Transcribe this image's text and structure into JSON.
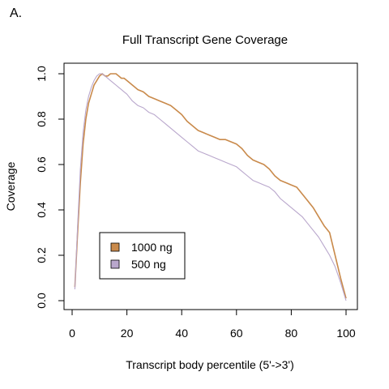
{
  "panel_label": "A.",
  "colors": {
    "series_1000ng": "#c98a4b",
    "series_500ng": "#b9a7cc",
    "axis": "#000000"
  },
  "chart_data": {
    "type": "line",
    "title": "Full Transcript Gene Coverage",
    "xlabel": "Transcript body percentile (5'->3')",
    "ylabel": "Coverage",
    "xlim": [
      0,
      100
    ],
    "ylim": [
      0,
      1
    ],
    "x_ticks": [
      0,
      20,
      40,
      60,
      80,
      100
    ],
    "y_ticks": [
      0.0,
      0.2,
      0.4,
      0.6,
      0.8,
      1.0
    ],
    "x_tick_labels": [
      "0",
      "20",
      "40",
      "60",
      "80",
      "100"
    ],
    "y_tick_labels": [
      "0.0",
      "0.2",
      "0.4",
      "0.6",
      "0.8",
      "1.0"
    ],
    "legend": {
      "placement": "bottom-left"
    },
    "x": [
      1,
      2,
      3,
      4,
      5,
      6,
      7,
      8,
      9,
      10,
      11,
      12,
      13,
      14,
      15,
      16,
      17,
      18,
      19,
      20,
      22,
      24,
      26,
      28,
      30,
      32,
      34,
      36,
      38,
      40,
      42,
      44,
      46,
      48,
      50,
      52,
      54,
      56,
      58,
      60,
      62,
      64,
      66,
      68,
      70,
      72,
      74,
      76,
      78,
      80,
      82,
      84,
      86,
      88,
      90,
      92,
      94,
      96,
      98,
      100
    ],
    "series": [
      {
        "name": "1000 ng",
        "values": [
          0.06,
          0.3,
          0.52,
          0.69,
          0.8,
          0.87,
          0.91,
          0.95,
          0.97,
          0.99,
          1.0,
          0.99,
          0.99,
          1.0,
          1.0,
          1.0,
          0.99,
          0.98,
          0.98,
          0.97,
          0.95,
          0.93,
          0.92,
          0.9,
          0.89,
          0.88,
          0.87,
          0.86,
          0.84,
          0.82,
          0.79,
          0.77,
          0.75,
          0.74,
          0.73,
          0.72,
          0.71,
          0.71,
          0.7,
          0.69,
          0.67,
          0.64,
          0.62,
          0.61,
          0.6,
          0.58,
          0.55,
          0.53,
          0.52,
          0.51,
          0.5,
          0.47,
          0.44,
          0.41,
          0.37,
          0.33,
          0.3,
          0.2,
          0.1,
          0.01
        ]
      },
      {
        "name": "500 ng",
        "values": [
          0.05,
          0.33,
          0.58,
          0.74,
          0.84,
          0.9,
          0.94,
          0.97,
          0.99,
          1.0,
          1.0,
          0.99,
          0.98,
          0.97,
          0.96,
          0.95,
          0.94,
          0.93,
          0.92,
          0.91,
          0.88,
          0.86,
          0.85,
          0.83,
          0.82,
          0.8,
          0.78,
          0.76,
          0.74,
          0.72,
          0.7,
          0.68,
          0.66,
          0.65,
          0.64,
          0.63,
          0.62,
          0.61,
          0.6,
          0.59,
          0.57,
          0.55,
          0.53,
          0.52,
          0.51,
          0.5,
          0.48,
          0.45,
          0.43,
          0.41,
          0.39,
          0.37,
          0.34,
          0.31,
          0.28,
          0.24,
          0.2,
          0.15,
          0.08,
          0.0
        ]
      }
    ]
  }
}
